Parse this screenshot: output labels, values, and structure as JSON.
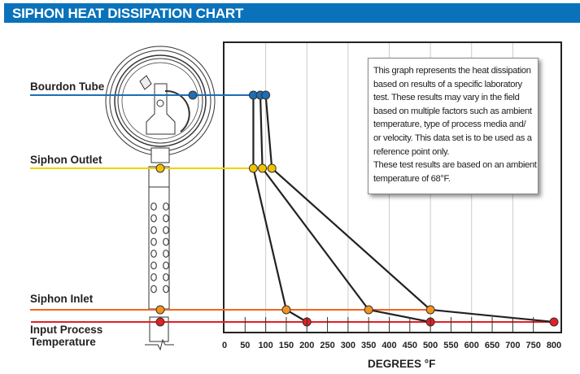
{
  "header": {
    "title": "SIPHON HEAT DISSIPATION CHART"
  },
  "note": {
    "lines": [
      "This graph represents the heat dissipation",
      "based on results of a specific laboratory",
      "test. These results may vary in the field",
      "based on multiple factors such as ambient",
      "temperature, type of process media and/",
      "or velocity. This data set is to be used as a",
      "reference point only.",
      "These test results are based on an ambient",
      "temperature of 68°F."
    ]
  },
  "chart_data": {
    "type": "line",
    "title": "SIPHON HEAT DISSIPATION CHART",
    "xlabel": "DEGREES °F",
    "xlim": [
      0,
      800
    ],
    "x_ticks": [
      "0",
      "50",
      "100",
      "150",
      "200",
      "250",
      "300",
      "350",
      "400",
      "450",
      "500",
      "550",
      "600",
      "650",
      "700",
      "750",
      "800"
    ],
    "levels": [
      {
        "name": "Bourdon Tube",
        "color": "#1f6db3"
      },
      {
        "name": "Siphon Outlet",
        "color": "#f4d000"
      },
      {
        "name": "Siphon Inlet",
        "color": "#f26522"
      },
      {
        "name": "Input Process Temperature",
        "color": "#e31e24"
      }
    ],
    "level_label_lines": {
      "bourdon": [
        "Bourdon Tube"
      ],
      "outlet": [
        "Siphon Outlet"
      ],
      "inlet": [
        "Siphon Inlet"
      ],
      "input": [
        "Input Process",
        "Temperature"
      ]
    },
    "point_colors": {
      "Bourdon Tube": "#1f6db3",
      "Siphon Outlet": "#f2c200",
      "Siphon Inlet": "#f7941d",
      "Input Process Temperature": "#e31e24"
    },
    "series": [
      {
        "values": {
          "Bourdon Tube": 70,
          "Siphon Outlet": 70,
          "Siphon Inlet": 150,
          "Input Process Temperature": 200
        }
      },
      {
        "values": {
          "Bourdon Tube": 87,
          "Siphon Outlet": 92,
          "Siphon Inlet": 350,
          "Input Process Temperature": 500
        }
      },
      {
        "values": {
          "Bourdon Tube": 100,
          "Siphon Outlet": 115,
          "Siphon Inlet": 500,
          "Input Process Temperature": 800
        }
      }
    ],
    "grid": true
  }
}
